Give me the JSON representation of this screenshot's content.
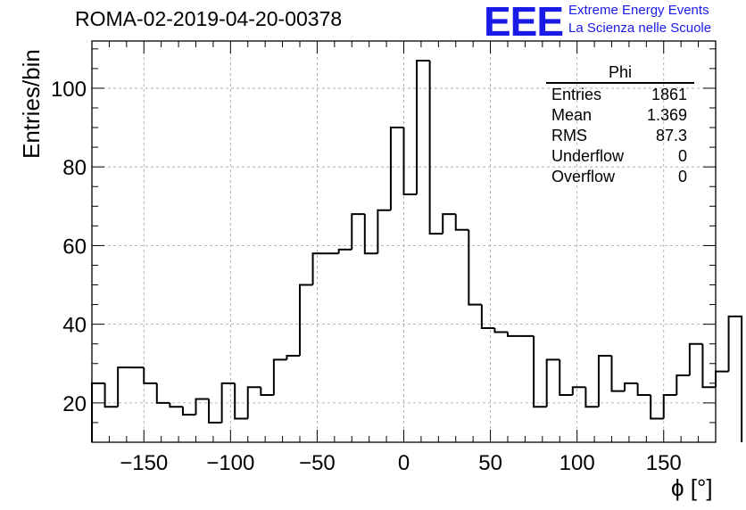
{
  "header": {
    "title": "ROMA-02-2019-04-20-00378",
    "logo_mark": "EEE",
    "logo_line1": "Extreme Energy Events",
    "logo_line2": "La Scienza nelle Scuole"
  },
  "stats_box": {
    "name": "Phi",
    "rows": [
      {
        "label": "Entries",
        "value": "1861"
      },
      {
        "label": "Mean",
        "value": "1.369"
      },
      {
        "label": "RMS",
        "value": "87.3"
      },
      {
        "label": "Underflow",
        "value": "0"
      },
      {
        "label": "Overflow",
        "value": "0"
      }
    ]
  },
  "colors": {
    "line": "#000000",
    "logo": "#1a1ae6",
    "grid": "#a0a0a0"
  },
  "chart_data": {
    "type": "histogram",
    "title": "ROMA-02-2019-04-20-00378",
    "xlabel": "ϕ [°]",
    "ylabel": "Entries/bin",
    "xlim": [
      -180,
      180
    ],
    "ylim": [
      10,
      112
    ],
    "bin_width": 7.5,
    "grid": true,
    "x_ticks": [
      -150,
      -100,
      -50,
      0,
      50,
      100,
      150
    ],
    "x_tick_labels": [
      "−150",
      "−100",
      "−50",
      "0",
      "50",
      "100",
      "150"
    ],
    "y_ticks": [
      20,
      40,
      60,
      80,
      100
    ],
    "y_tick_labels": [
      "20",
      "40",
      "60",
      "80",
      "100"
    ],
    "bin_edges_start": -180,
    "values": [
      25,
      19,
      29,
      29,
      25,
      20,
      19,
      17,
      21,
      15,
      25,
      16,
      24,
      22,
      31,
      32,
      50,
      58,
      58,
      59,
      68,
      58,
      69,
      90,
      73,
      107,
      63,
      68,
      64,
      45,
      39,
      38,
      37,
      37,
      19,
      31,
      22,
      24,
      19,
      32,
      23,
      25,
      22,
      16,
      22,
      27,
      35,
      24,
      28,
      42
    ]
  }
}
